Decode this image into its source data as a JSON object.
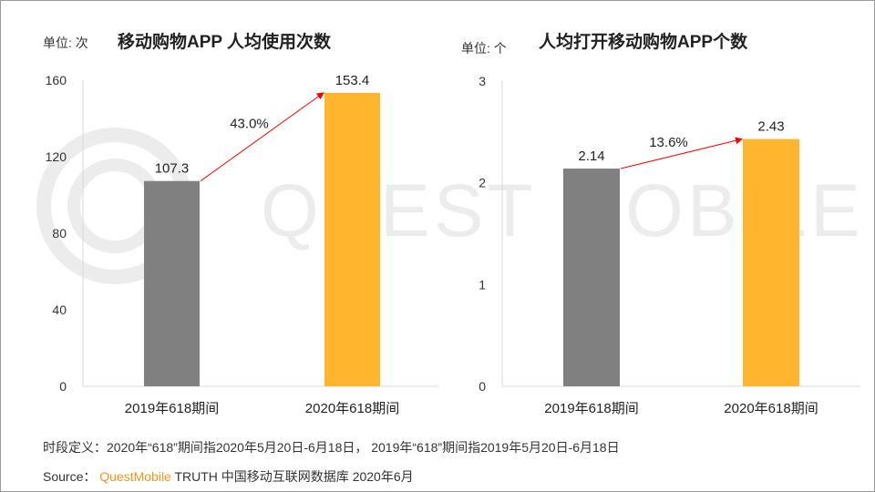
{
  "watermark": "QUEST MOBILE",
  "colors": {
    "bar_2019": "#808080",
    "bar_2020": "#ffb52e",
    "arrow": "#ff0000",
    "brand": "#f7941d"
  },
  "chart_data": [
    {
      "type": "bar",
      "title": "移动购物APP 人均使用次数",
      "unit": "单位: 次",
      "categories": [
        "2019年618期间",
        "2020年618期间"
      ],
      "values": [
        107.3,
        153.4
      ],
      "value_labels": [
        "107.3",
        "153.4"
      ],
      "growth_label": "43.0%",
      "ylim": [
        0,
        160
      ],
      "yticks": [
        "0",
        "40",
        "80",
        "120",
        "160"
      ],
      "grid": false
    },
    {
      "type": "bar",
      "title": "人均打开移动购物APP个数",
      "unit": "单位: 个",
      "categories": [
        "2019年618期间",
        "2020年618期间"
      ],
      "values": [
        2.14,
        2.43
      ],
      "value_labels": [
        "2.14",
        "2.43"
      ],
      "growth_label": "13.6%",
      "ylim": [
        0,
        3
      ],
      "yticks": [
        "0",
        "1",
        "2",
        "3"
      ],
      "grid": false
    }
  ],
  "footer": {
    "definition": "时段定义：2020年“618”期间指2020年5月20日-6月18日， 2019年“618”期间指2019年5月20日-6月18日",
    "source_label": "Source：",
    "source_brand": "QuestMobile",
    "source_text": "TRUTH 中国移动互联网数据库 2020年6月"
  }
}
